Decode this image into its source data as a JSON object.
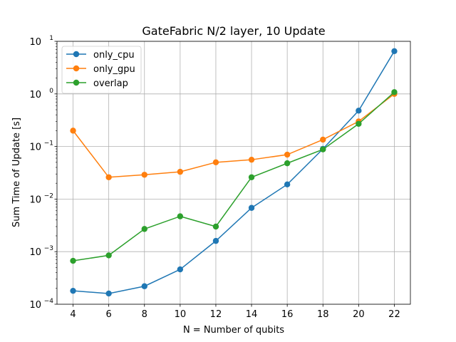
{
  "chart_data": {
    "type": "line",
    "title": "GateFabric N/2 layer, 10 Update",
    "xlabel": "N = Number of qubits",
    "ylabel": "Sum Time of Update [s]",
    "x": [
      4,
      6,
      8,
      10,
      12,
      14,
      16,
      18,
      20,
      22
    ],
    "xticks": [
      "4",
      "6",
      "8",
      "10",
      "12",
      "14",
      "16",
      "18",
      "20",
      "22"
    ],
    "xlim": [
      3.1,
      22.9
    ],
    "y_scale": "log",
    "ylim": [
      0.0001,
      10
    ],
    "yticks": [
      {
        "value": 0.0001,
        "base": "10",
        "exp": "−4"
      },
      {
        "value": 0.001,
        "base": "10",
        "exp": "−3"
      },
      {
        "value": 0.01,
        "base": "10",
        "exp": "−2"
      },
      {
        "value": 0.1,
        "base": "10",
        "exp": "−1"
      },
      {
        "value": 1,
        "base": "10",
        "exp": "0"
      },
      {
        "value": 10,
        "base": "10",
        "exp": "1"
      }
    ],
    "grid": true,
    "legend_position": "top-left",
    "series": [
      {
        "name": "only_cpu",
        "color": "#1f77b4",
        "values": [
          0.00018,
          0.00016,
          0.00022,
          0.00046,
          0.0016,
          0.0068,
          0.019,
          0.09,
          0.48,
          6.5
        ]
      },
      {
        "name": "only_gpu",
        "color": "#ff7f0e",
        "values": [
          0.2,
          0.026,
          0.029,
          0.033,
          0.05,
          0.056,
          0.07,
          0.135,
          0.3,
          1.0
        ]
      },
      {
        "name": "overlap",
        "color": "#2ca02c",
        "values": [
          0.00067,
          0.00085,
          0.0027,
          0.0047,
          0.003,
          0.026,
          0.048,
          0.088,
          0.27,
          1.08
        ]
      }
    ]
  }
}
